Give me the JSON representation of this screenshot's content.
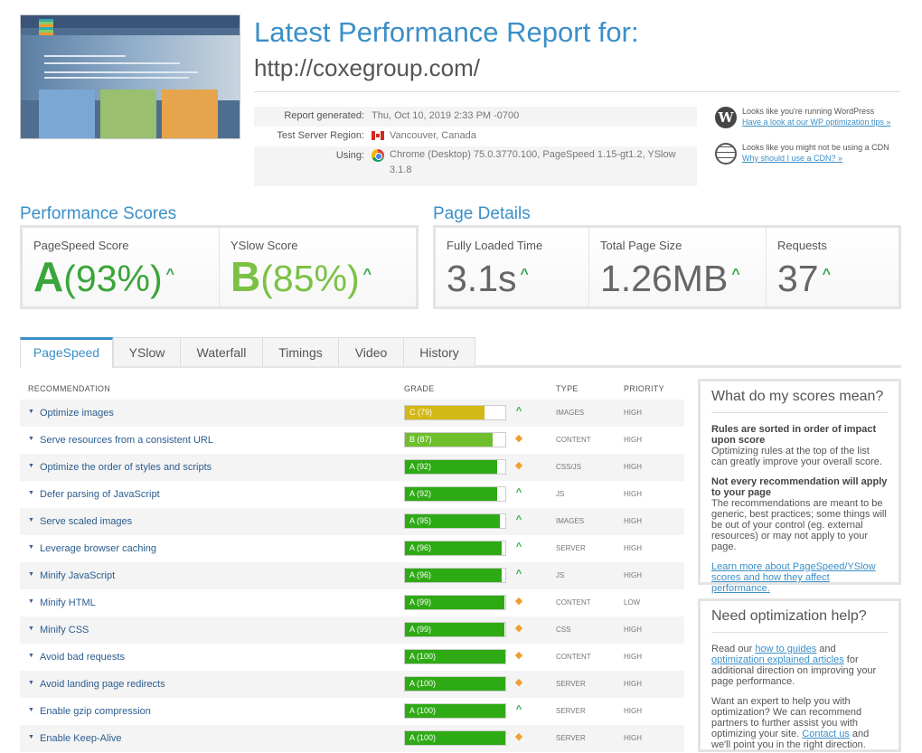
{
  "colors": {
    "accent": "#3a8fc8",
    "grade_a": "#2eaa15",
    "grade_b": "#6fbf2d",
    "grade_c": "#d4b814"
  },
  "header": {
    "title": "Latest Performance Report for:",
    "url": "http://coxegroup.com/"
  },
  "meta": {
    "report_generated_label": "Report generated:",
    "report_generated": "Thu, Oct 10, 2019 2:33 PM -0700",
    "region_label": "Test Server Region:",
    "region": "Vancouver, Canada",
    "using_label": "Using:",
    "using": "Chrome (Desktop) 75.0.3770.100, PageSpeed 1.15-gt1.2, YSlow 3.1.8"
  },
  "notices": {
    "wp_text": "Looks like you're running WordPress",
    "wp_link": "Have a look at our WP optimization tips »",
    "cdn_text": "Looks like you might not be using a CDN",
    "cdn_link": "Why should I use a CDN? »"
  },
  "performance": {
    "title": "Performance Scores",
    "pagespeed_label": "PageSpeed Score",
    "pagespeed_grade": "A",
    "pagespeed_pct": "(93%)",
    "yslow_label": "YSlow Score",
    "yslow_grade": "B",
    "yslow_pct": "(85%)"
  },
  "details": {
    "title": "Page Details",
    "loaded_label": "Fully Loaded Time",
    "loaded": "3.1s",
    "size_label": "Total Page Size",
    "size": "1.26MB",
    "requests_label": "Requests",
    "requests": "37"
  },
  "tabs": [
    "PageSpeed",
    "YSlow",
    "Waterfall",
    "Timings",
    "Video",
    "History"
  ],
  "table": {
    "headers": {
      "recommendation": "RECOMMENDATION",
      "grade": "GRADE",
      "type": "TYPE",
      "priority": "PRIORITY"
    },
    "rows": [
      {
        "name": "Optimize images",
        "grade": "C (79)",
        "score": 79,
        "trend": "up",
        "type": "IMAGES",
        "priority": "HIGH"
      },
      {
        "name": "Serve resources from a consistent URL",
        "grade": "B (87)",
        "score": 87,
        "trend": "same",
        "type": "CONTENT",
        "priority": "HIGH"
      },
      {
        "name": "Optimize the order of styles and scripts",
        "grade": "A (92)",
        "score": 92,
        "trend": "same",
        "type": "CSS/JS",
        "priority": "HIGH"
      },
      {
        "name": "Defer parsing of JavaScript",
        "grade": "A (92)",
        "score": 92,
        "trend": "up",
        "type": "JS",
        "priority": "HIGH"
      },
      {
        "name": "Serve scaled images",
        "grade": "A (95)",
        "score": 95,
        "trend": "up",
        "type": "IMAGES",
        "priority": "HIGH"
      },
      {
        "name": "Leverage browser caching",
        "grade": "A (96)",
        "score": 96,
        "trend": "up",
        "type": "SERVER",
        "priority": "HIGH"
      },
      {
        "name": "Minify JavaScript",
        "grade": "A (96)",
        "score": 96,
        "trend": "up",
        "type": "JS",
        "priority": "HIGH"
      },
      {
        "name": "Minify HTML",
        "grade": "A (99)",
        "score": 99,
        "trend": "same",
        "type": "CONTENT",
        "priority": "LOW"
      },
      {
        "name": "Minify CSS",
        "grade": "A (99)",
        "score": 99,
        "trend": "same",
        "type": "CSS",
        "priority": "HIGH"
      },
      {
        "name": "Avoid bad requests",
        "grade": "A (100)",
        "score": 100,
        "trend": "same",
        "type": "CONTENT",
        "priority": "HIGH"
      },
      {
        "name": "Avoid landing page redirects",
        "grade": "A (100)",
        "score": 100,
        "trend": "same",
        "type": "SERVER",
        "priority": "HIGH"
      },
      {
        "name": "Enable gzip compression",
        "grade": "A (100)",
        "score": 100,
        "trend": "up",
        "type": "SERVER",
        "priority": "HIGH"
      },
      {
        "name": "Enable Keep-Alive",
        "grade": "A (100)",
        "score": 100,
        "trend": "same",
        "type": "SERVER",
        "priority": "HIGH"
      }
    ]
  },
  "side1": {
    "title": "What do my scores mean?",
    "h1": "Rules are sorted in order of impact upon score",
    "p1": "Optimizing rules at the top of the list can greatly improve your overall score.",
    "h2": "Not every recommendation will apply to your page",
    "p2": "The recommendations are meant to be generic, best practices; some things will be out of your control (eg. external resources) or may not apply to your page.",
    "link": "Learn more about PageSpeed/YSlow scores and how they affect performance."
  },
  "side2": {
    "title": "Need optimization help?",
    "p1_a": "Read our ",
    "p1_link1": "how to guides",
    "p1_b": " and ",
    "p1_link2": "optimization explained articles",
    "p1_c": " for additional direction on improving your page performance.",
    "p2_a": "Want an expert to help you with optimization? We can recommend partners to further assist you with optimizing your site. ",
    "p2_link": "Contact us",
    "p2_b": " and we'll point you in the right direction."
  }
}
